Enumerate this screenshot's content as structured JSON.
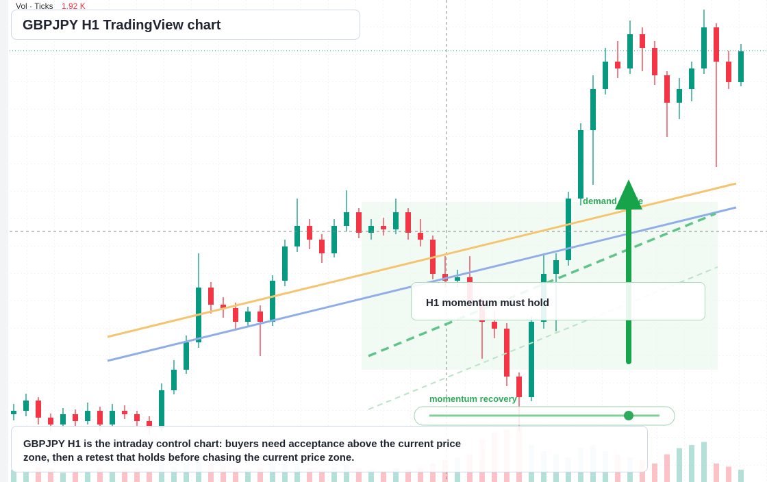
{
  "chart_data": {
    "type": "candlestick",
    "title": "GBPJPY H1 TradingView chart",
    "volume_label": "Vol · Ticks",
    "volume_value": "1.92 K",
    "up_color": "#089981",
    "down_color": "#f23645",
    "ylim": [
      0,
      704
    ],
    "vlim": [
      0,
      100
    ],
    "open": [
      99,
      104,
      119,
      94,
      84,
      99,
      89,
      104,
      84,
      104,
      99,
      89,
      79,
      134,
      164,
      204,
      284,
      259,
      254,
      234,
      249,
      234,
      294,
      344,
      374,
      354,
      334,
      374,
      394,
      364,
      374,
      369,
      394,
      364,
      354,
      304,
      294,
      299,
      264,
      234,
      224,
      154,
      124,
      234,
      304,
      324,
      414,
      514,
      574,
      614,
      604,
      654,
      634,
      594,
      554,
      574,
      604,
      664,
      614,
      584
    ],
    "high": [
      114,
      129,
      124,
      100,
      108,
      106,
      116,
      110,
      114,
      112,
      104,
      96,
      144,
      178,
      214,
      334,
      292,
      270,
      262,
      256,
      258,
      302,
      354,
      414,
      384,
      362,
      384,
      426,
      400,
      384,
      386,
      414,
      400,
      384,
      360,
      330,
      310,
      330,
      270,
      250,
      232,
      160,
      242,
      334,
      334,
      424,
      524,
      594,
      634,
      644,
      674,
      664,
      644,
      600,
      590,
      614,
      690,
      670,
      630,
      640
    ],
    "low": [
      90,
      96,
      84,
      74,
      78,
      80,
      84,
      74,
      80,
      92,
      80,
      70,
      74,
      128,
      158,
      196,
      246,
      240,
      222,
      226,
      184,
      228,
      286,
      336,
      340,
      320,
      328,
      366,
      356,
      354,
      360,
      362,
      354,
      344,
      296,
      284,
      284,
      254,
      180,
      210,
      140,
      74,
      118,
      224,
      220,
      316,
      404,
      434,
      566,
      590,
      596,
      600,
      580,
      504,
      530,
      556,
      596,
      460,
      574,
      578
    ],
    "close": [
      104,
      119,
      94,
      84,
      99,
      89,
      104,
      84,
      104,
      99,
      89,
      79,
      134,
      164,
      204,
      284,
      259,
      254,
      234,
      249,
      234,
      294,
      344,
      374,
      354,
      334,
      374,
      394,
      364,
      374,
      369,
      394,
      364,
      354,
      304,
      294,
      299,
      264,
      234,
      224,
      154,
      124,
      234,
      304,
      324,
      414,
      514,
      574,
      614,
      604,
      654,
      634,
      594,
      554,
      574,
      604,
      664,
      614,
      584,
      629
    ],
    "volume": [
      20,
      18,
      25,
      22,
      15,
      20,
      18,
      24,
      16,
      20,
      22,
      18,
      30,
      25,
      28,
      40,
      30,
      26,
      22,
      20,
      24,
      28,
      30,
      26,
      22,
      20,
      24,
      28,
      22,
      20,
      18,
      22,
      20,
      24,
      30,
      35,
      40,
      45,
      70,
      80,
      85,
      90,
      60,
      50,
      45,
      40,
      55,
      60,
      50,
      45,
      40,
      35,
      30,
      45,
      55,
      60,
      65,
      30,
      25,
      20
    ],
    "annotations": [
      "demand guide",
      "H1 momentum must hold",
      "momentum recovery"
    ],
    "note": "GBPJPY H1 is the intraday control chart: buyers need acceptance above the current price zone, then a retest that holds before chasing the current price zone."
  }
}
